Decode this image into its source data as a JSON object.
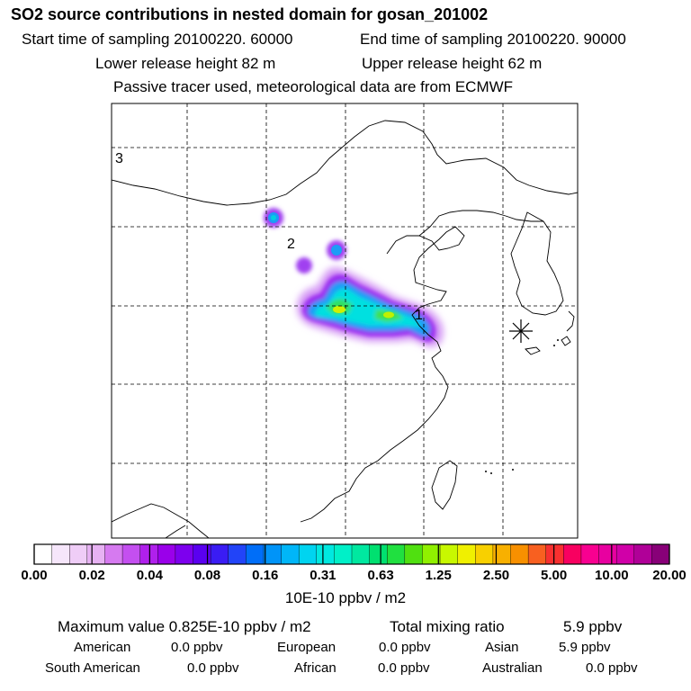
{
  "header": {
    "title": "SO2 source contributions in nested domain for gosan_201002",
    "start_time": "Start time of sampling 20100220. 60000",
    "end_time": "End time of sampling 20100220. 90000",
    "lower_release": "Lower release height   82 m",
    "upper_release": "Upper release height   62 m",
    "tracer_note": "Passive tracer used, meteorological data are from ECMWF"
  },
  "map": {
    "labels": [
      "3",
      "2",
      "1"
    ],
    "station_marker": "asterisk-icon"
  },
  "colorbar": {
    "ticks": [
      "0.00",
      "0.02",
      "0.04",
      "0.08",
      "0.16",
      "0.31",
      "0.63",
      "1.25",
      "2.50",
      "5.00",
      "10.00",
      "20.00"
    ],
    "unit": "10E-10 ppbv / m2",
    "colors": [
      "#ffffff",
      "#f6e6fb",
      "#efcdf7",
      "#e7b2f3",
      "#d67af0",
      "#c44ff0",
      "#b020ec",
      "#9a00ea",
      "#7d00ee",
      "#5a00f0",
      "#3a1cf4",
      "#2244f8",
      "#006ef8",
      "#0094f8",
      "#00b6f8",
      "#00d4f0",
      "#00e8e0",
      "#00f0c8",
      "#00e8a0",
      "#00e070",
      "#20e040",
      "#50e010",
      "#90f000",
      "#c8f800",
      "#f0f000",
      "#f8d000",
      "#f8b000",
      "#f89000",
      "#f86020",
      "#f83030",
      "#f80060",
      "#f80090",
      "#e800a0",
      "#d000a8",
      "#b00098",
      "#880078"
    ]
  },
  "summary": {
    "max_label": "Maximum value  0.825E-10 ppbv / m2",
    "total_label": "Total mixing ratio",
    "total_value": "5.9 ppbv",
    "regions": [
      {
        "name": "American",
        "value": "0.0 ppbv"
      },
      {
        "name": "European",
        "value": "0.0 ppbv"
      },
      {
        "name": "Asian",
        "value": "5.9 ppbv"
      },
      {
        "name": "South American",
        "value": "0.0 ppbv"
      },
      {
        "name": "African",
        "value": "0.0 ppbv"
      },
      {
        "name": "Australian",
        "value": "0.0 ppbv"
      }
    ]
  }
}
